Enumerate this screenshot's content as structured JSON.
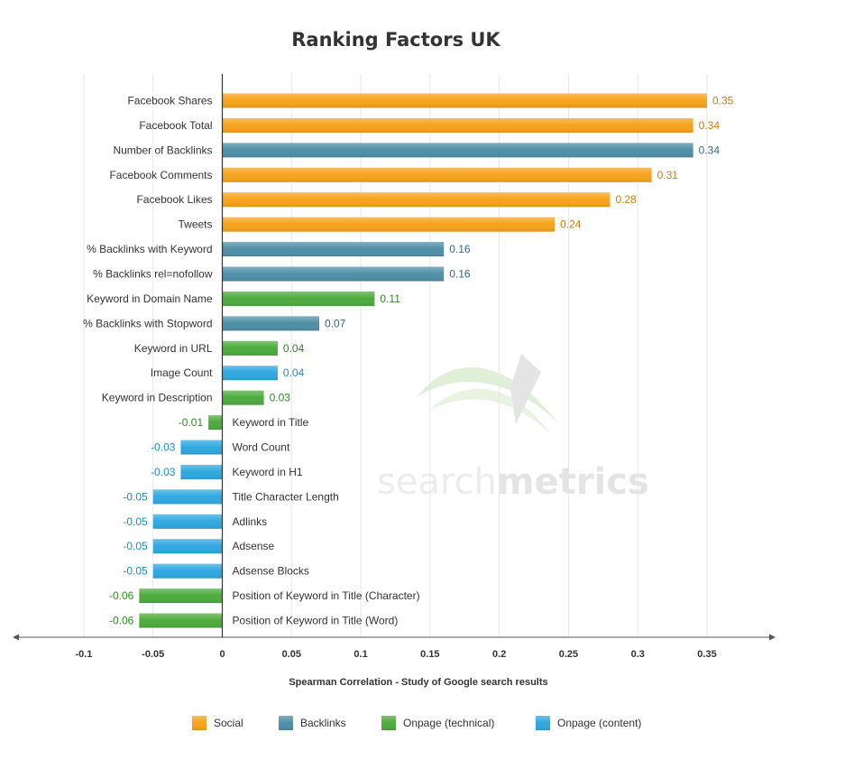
{
  "chart_data": {
    "type": "bar",
    "orientation": "horizontal",
    "title": "Ranking Factors UK",
    "xlabel": "Spearman Correlation - Study of Google search results",
    "ylabel": "",
    "xlim": [
      -0.15,
      0.4
    ],
    "xticks": [
      -0.1,
      -0.05,
      0,
      0.05,
      0.1,
      0.15,
      0.2,
      0.25,
      0.3,
      0.35
    ],
    "xtick_labels": [
      "-0.1",
      "-0.05",
      "0",
      "0.05",
      "0.1",
      "0.15",
      "0.2",
      "0.25",
      "0.3",
      "0.35"
    ],
    "grid": "vertical",
    "legend_position": "bottom",
    "colors": {
      "Social": "#f7a21b",
      "Backlinks": "#4f8fa8",
      "Onpage (technical)": "#4dab3c",
      "Onpage (content)": "#2fa8e0"
    },
    "label_colors": {
      "Social": "#c77b10",
      "Backlinks": "#2e6c84",
      "Onpage (technical)": "#2f8a22",
      "Onpage (content)": "#1a8ec9"
    },
    "legend": [
      "Social",
      "Backlinks",
      "Onpage (technical)",
      "Onpage (content)"
    ],
    "bars": [
      {
        "label": "Facebook Shares",
        "value": 0.35,
        "value_label": "0.35",
        "group": "Social"
      },
      {
        "label": "Facebook Total",
        "value": 0.34,
        "value_label": "0.34",
        "group": "Social"
      },
      {
        "label": "Number of Backlinks",
        "value": 0.34,
        "value_label": "0.34",
        "group": "Backlinks"
      },
      {
        "label": "Facebook Comments",
        "value": 0.31,
        "value_label": "0.31",
        "group": "Social"
      },
      {
        "label": "Facebook Likes",
        "value": 0.28,
        "value_label": "0.28",
        "group": "Social"
      },
      {
        "label": "Tweets",
        "value": 0.24,
        "value_label": "0.24",
        "group": "Social"
      },
      {
        "label": "% Backlinks with Keyword",
        "value": 0.16,
        "value_label": "0.16",
        "group": "Backlinks"
      },
      {
        "label": "% Backlinks rel=nofollow",
        "value": 0.16,
        "value_label": "0.16",
        "group": "Backlinks"
      },
      {
        "label": "Keyword in Domain Name",
        "value": 0.11,
        "value_label": "0.11",
        "group": "Onpage (technical)"
      },
      {
        "label": "% Backlinks with Stopword",
        "value": 0.07,
        "value_label": "0.07",
        "group": "Backlinks"
      },
      {
        "label": "Keyword in URL",
        "value": 0.04,
        "value_label": "0.04",
        "group": "Onpage (technical)"
      },
      {
        "label": "Image Count",
        "value": 0.04,
        "value_label": "0.04",
        "group": "Onpage (content)"
      },
      {
        "label": "Keyword in Description",
        "value": 0.03,
        "value_label": "0.03",
        "group": "Onpage (technical)"
      },
      {
        "label": "Keyword in Title",
        "value": -0.01,
        "value_label": "-0.01",
        "group": "Onpage (technical)"
      },
      {
        "label": "Word Count",
        "value": -0.03,
        "value_label": "-0.03",
        "group": "Onpage (content)"
      },
      {
        "label": "Keyword in H1",
        "value": -0.03,
        "value_label": "-0.03",
        "group": "Onpage (content)"
      },
      {
        "label": "Title Character Length",
        "value": -0.05,
        "value_label": "-0.05",
        "group": "Onpage (content)"
      },
      {
        "label": "Adlinks",
        "value": -0.05,
        "value_label": "-0.05",
        "group": "Onpage (content)"
      },
      {
        "label": "Adsense",
        "value": -0.05,
        "value_label": "-0.05",
        "group": "Onpage (content)"
      },
      {
        "label": "Adsense Blocks",
        "value": -0.05,
        "value_label": "-0.05",
        "group": "Onpage (content)"
      },
      {
        "label": "Position of Keyword in Title (Character)",
        "value": -0.06,
        "value_label": "-0.06",
        "group": "Onpage (technical)"
      },
      {
        "label": "Position of Keyword in Title (Word)",
        "value": -0.06,
        "value_label": "-0.06",
        "group": "Onpage (technical)"
      }
    ]
  },
  "watermark": {
    "text_light": "search",
    "text_bold": "metrics",
    "logo_icon": "searchmetrics-swoosh-logo"
  }
}
